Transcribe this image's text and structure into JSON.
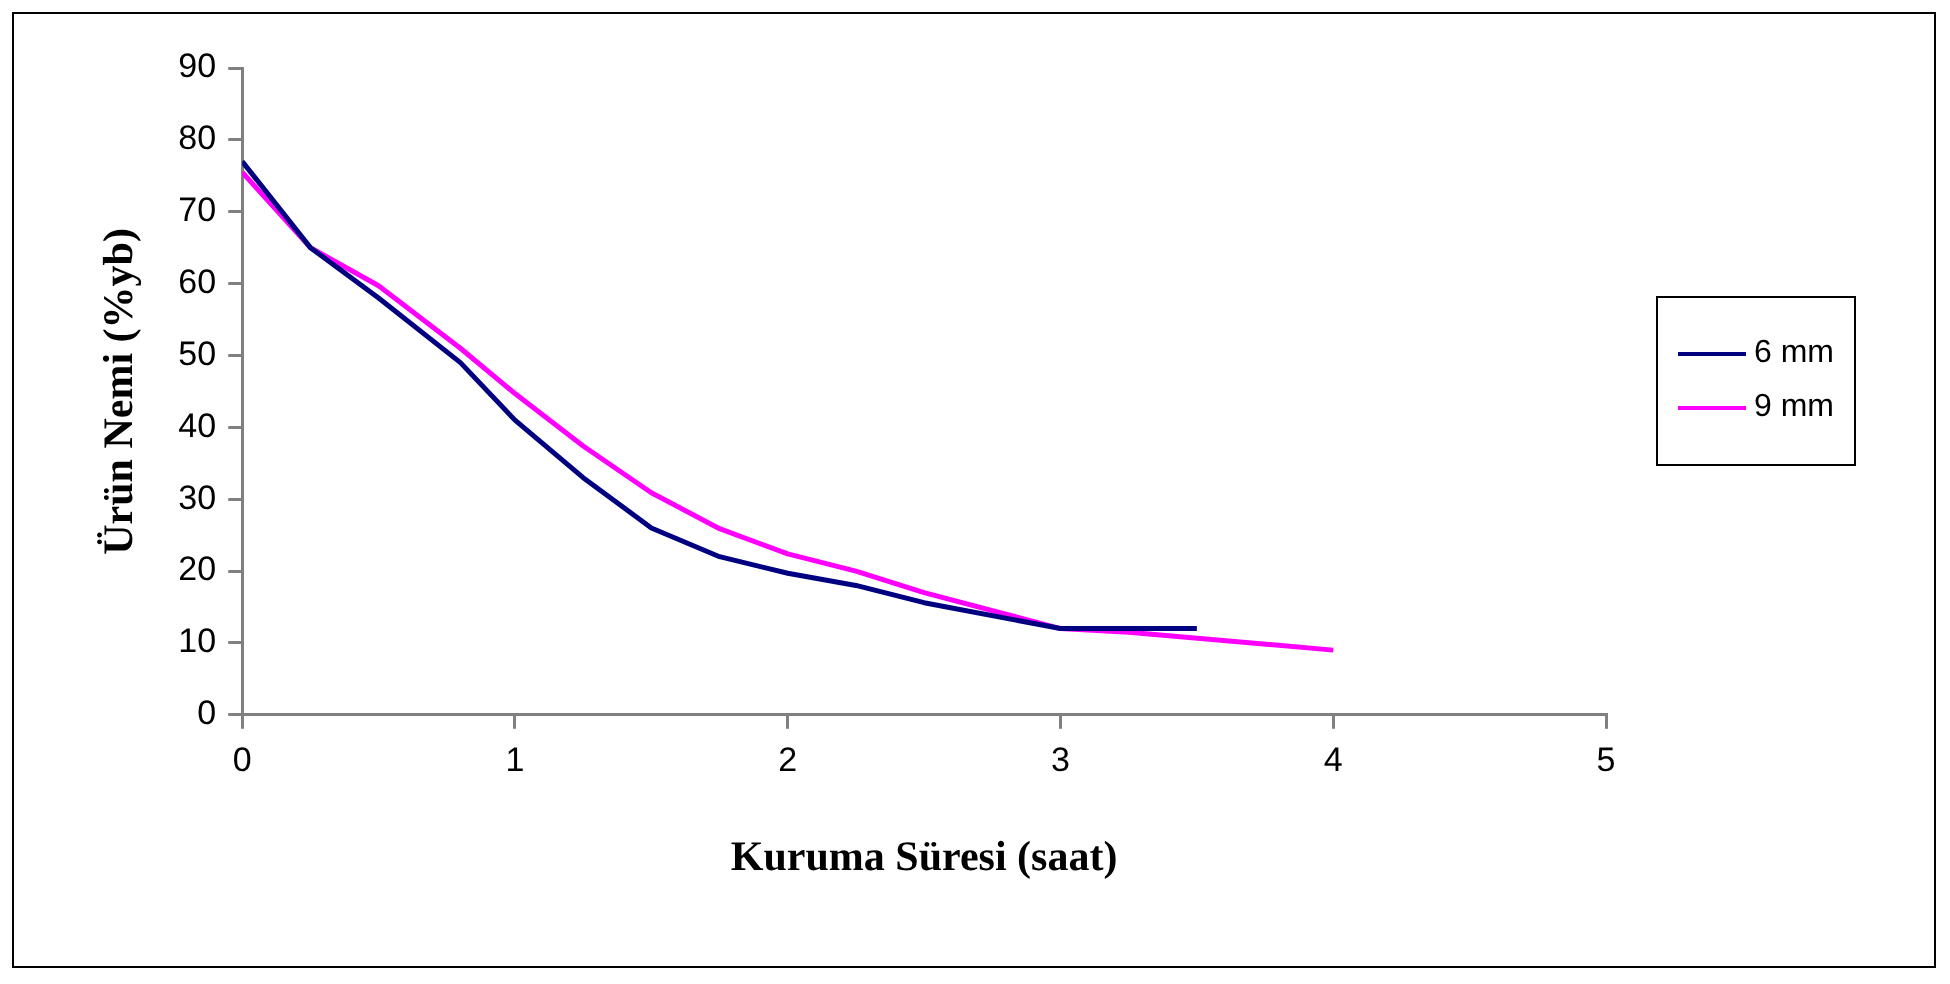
{
  "chart_data": {
    "type": "line",
    "xlabel": "Kuruma Süresi (saat)",
    "ylabel": "Ürün Nemi (%yb)",
    "xlim": [
      0,
      5
    ],
    "xticks": [
      0,
      1,
      2,
      3,
      4,
      5
    ],
    "ylim": [
      0,
      90
    ],
    "yticks": [
      0,
      10,
      20,
      30,
      40,
      50,
      60,
      70,
      80,
      90
    ],
    "grid": false,
    "legend": "right",
    "marker": "none",
    "line_style": "solid",
    "series": [
      {
        "name": "6 mm",
        "color": "#000080",
        "x": [
          0,
          0.25,
          0.5,
          0.8,
          1,
          1.25,
          1.5,
          1.75,
          2,
          2.25,
          2.5,
          3,
          3.5
        ],
        "values": [
          77,
          65,
          58,
          49,
          41,
          33,
          26,
          22,
          19.7,
          18,
          15.6,
          12,
          12
        ]
      },
      {
        "name": "9 mm",
        "color": "#ff00ff",
        "x": [
          0,
          0.25,
          0.5,
          0.8,
          1,
          1.25,
          1.5,
          1.75,
          2,
          2.25,
          2.5,
          3,
          3.25,
          4
        ],
        "values": [
          75.5,
          65,
          59.7,
          51,
          44.7,
          37.4,
          30.9,
          25.9,
          22.4,
          20,
          17,
          12,
          11.5,
          9
        ]
      }
    ]
  }
}
